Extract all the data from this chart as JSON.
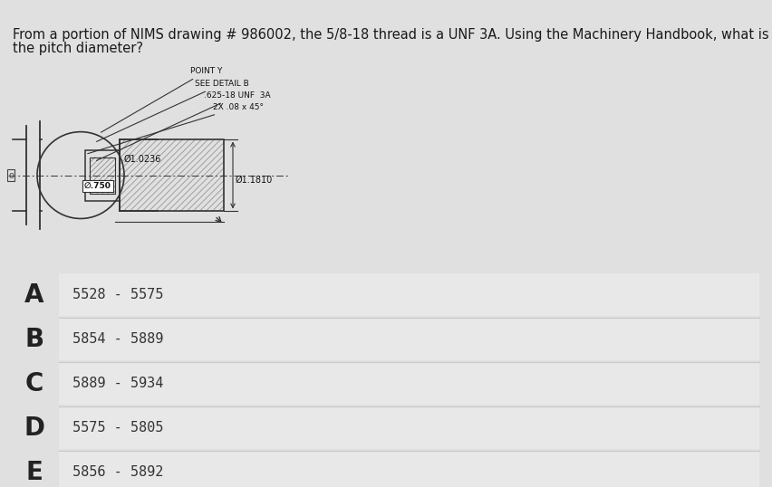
{
  "title_line1": "From a portion of NIMS drawing # 986002, the 5/8-18 thread is a UNF 3A. Using the Machinery Handbook, what is",
  "title_line2": "the pitch diameter?",
  "title_fontsize": 10.5,
  "title_color": "#1a1a1a",
  "top_bar_color": "#2a5caa",
  "background_color": "#e0e0e0",
  "drawing_bg": "#d8d8d8",
  "line_color": "#333333",
  "options": [
    {
      "letter": "A",
      "text": "5528 - 5575"
    },
    {
      "letter": "B",
      "text": "5854 - 5889"
    },
    {
      "letter": "C",
      "text": "5889 - 5934"
    },
    {
      "letter": "D",
      "text": "5575 - 5805"
    },
    {
      "letter": "E",
      "text": "5856 - 5892"
    }
  ],
  "option_letter_fontsize": 20,
  "option_text_fontsize": 11,
  "option_letter_color": "#222222",
  "option_text_color": "#333333",
  "divider_color": "#c8c8c8",
  "option_bg": "#e8e8e8",
  "drawing_labels": {
    "point_y": "POINT Y",
    "see_detail": "SEE DETAIL B",
    "thread": ".625-18 UNF  3A",
    "chamfer": "2X .08 x 45°",
    "dim1": "Ø1.0236",
    "dim2": "Ø1.1810",
    "dim3": "∅.750"
  },
  "drawing_fontsize": 6.5
}
